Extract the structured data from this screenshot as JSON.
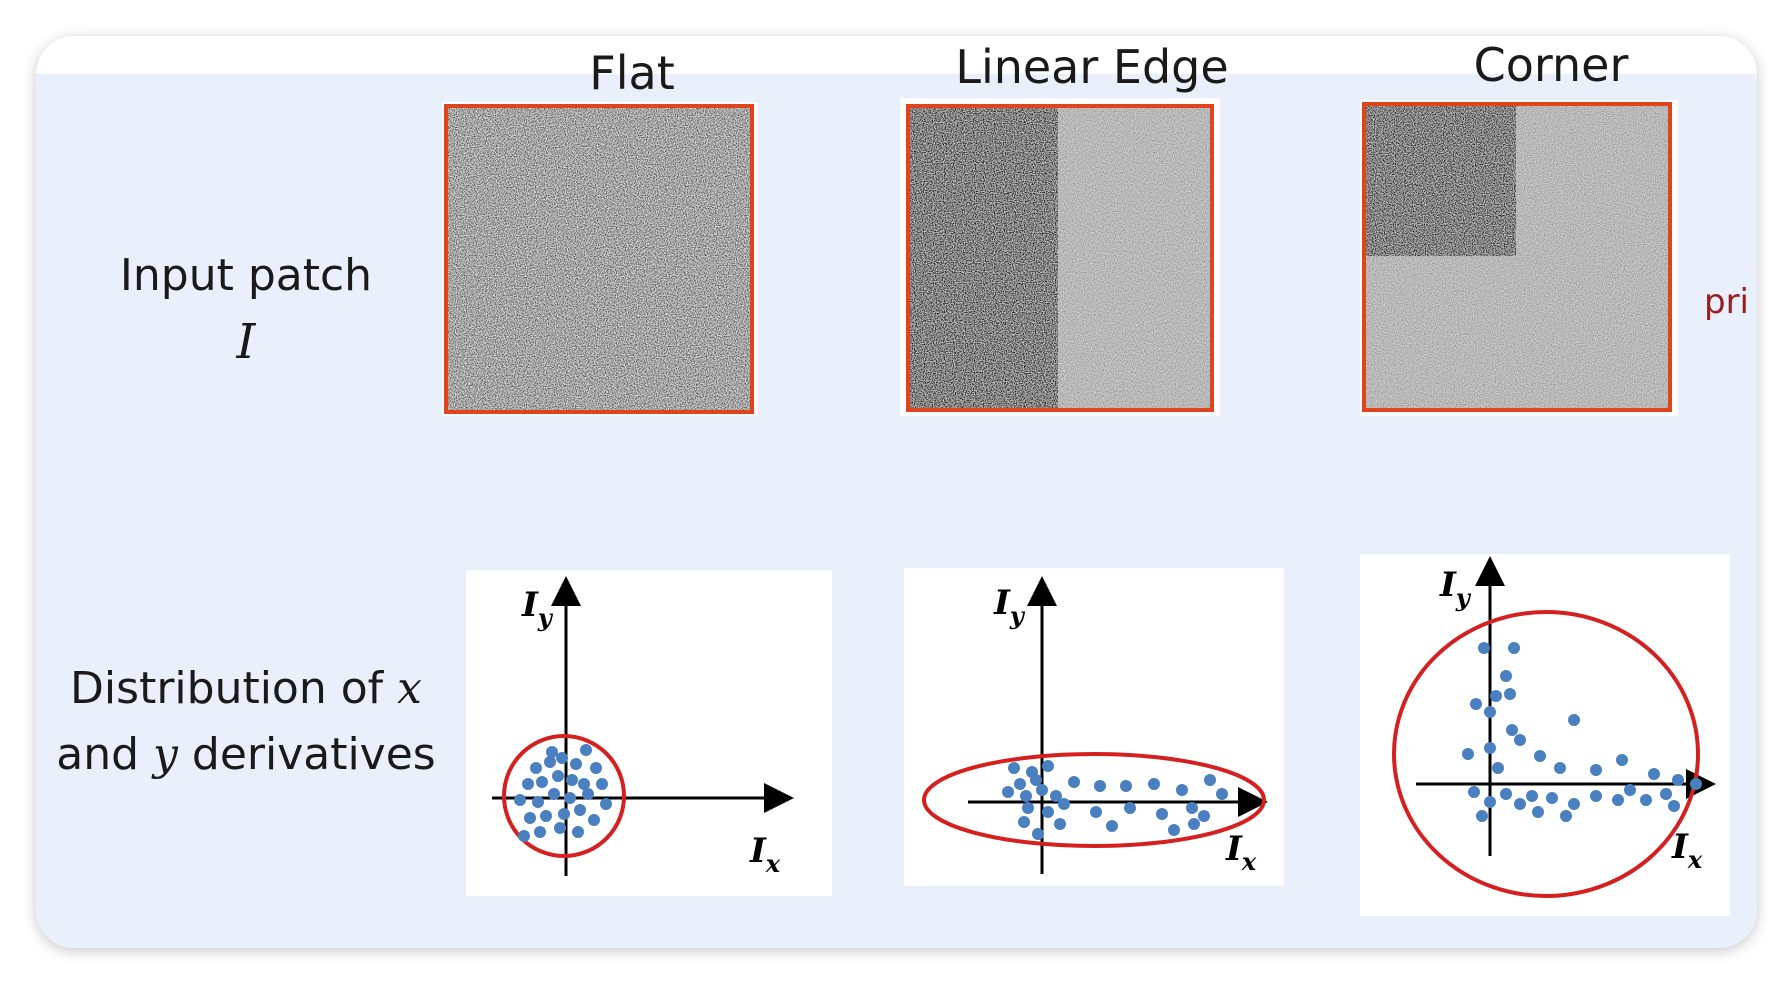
{
  "columns": [
    {
      "title": "Flat"
    },
    {
      "title": "Linear Edge"
    },
    {
      "title": "Corner"
    }
  ],
  "rows": {
    "input_label": "Input patch",
    "input_symbol": "I",
    "dist_line1_text": "Distribution of ",
    "dist_line1_var": "x",
    "dist_line2_pre": "and ",
    "dist_line2_var": "y",
    "dist_line2_post": " derivatives"
  },
  "axes": {
    "x_base": "I",
    "x_sub": "x",
    "y_base": "I",
    "y_sub": "y"
  },
  "side_text": "pri",
  "colors": {
    "panel": "#e9f0fc",
    "patch_border": "#e0441c",
    "ellipse": "#d42020",
    "point": "#4a7fc0"
  }
}
